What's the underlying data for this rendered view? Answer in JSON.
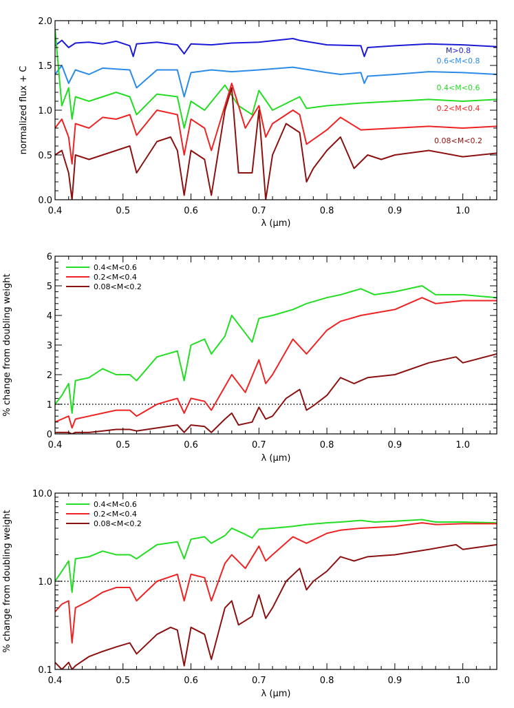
{
  "chart_data": [
    {
      "type": "line",
      "title": "",
      "xlabel": "λ (μm)",
      "ylabel": "normalized flux + C",
      "xlim": [
        0.4,
        1.05
      ],
      "ylim": [
        0.0,
        2.0
      ],
      "xticks": [
        0.4,
        0.5,
        0.6,
        0.7,
        0.8,
        0.9,
        1.0
      ],
      "xtick_labels": [
        "0.4",
        "0.5",
        "0.6",
        "0.7",
        "0.8",
        "0.9",
        "1.0"
      ],
      "yticks": [
        0.0,
        0.5,
        1.0,
        1.5,
        2.0
      ],
      "ytick_labels": [
        "0.0",
        "0.5",
        "1.0",
        "1.5",
        "2.0"
      ],
      "yscale": "linear",
      "legend": "inline-right",
      "series": [
        {
          "name": "M>0.8",
          "color": "#1a1ad6",
          "x": [
            0.4,
            0.41,
            0.42,
            0.43,
            0.45,
            0.47,
            0.49,
            0.51,
            0.515,
            0.52,
            0.55,
            0.58,
            0.59,
            0.6,
            0.63,
            0.66,
            0.7,
            0.75,
            0.76,
            0.8,
            0.85,
            0.855,
            0.86,
            0.9,
            0.95,
            1.0,
            1.05
          ],
          "y": [
            1.72,
            1.78,
            1.7,
            1.75,
            1.76,
            1.74,
            1.77,
            1.72,
            1.6,
            1.74,
            1.76,
            1.73,
            1.63,
            1.74,
            1.73,
            1.75,
            1.76,
            1.8,
            1.78,
            1.73,
            1.72,
            1.6,
            1.7,
            1.72,
            1.74,
            1.73,
            1.71
          ]
        },
        {
          "name": "0.6<M<0.8",
          "color": "#2a8ae8",
          "x": [
            0.4,
            0.41,
            0.42,
            0.43,
            0.45,
            0.47,
            0.49,
            0.51,
            0.52,
            0.55,
            0.58,
            0.59,
            0.6,
            0.63,
            0.66,
            0.7,
            0.75,
            0.8,
            0.82,
            0.85,
            0.855,
            0.86,
            0.9,
            0.95,
            1.0,
            1.05
          ],
          "y": [
            1.4,
            1.5,
            1.3,
            1.45,
            1.4,
            1.47,
            1.46,
            1.45,
            1.25,
            1.45,
            1.45,
            1.15,
            1.42,
            1.45,
            1.43,
            1.45,
            1.48,
            1.42,
            1.4,
            1.42,
            1.3,
            1.38,
            1.4,
            1.43,
            1.42,
            1.4
          ]
        },
        {
          "name": "0.4<M<0.6",
          "color": "#22dd22",
          "x": [
            0.4,
            0.41,
            0.42,
            0.425,
            0.43,
            0.45,
            0.47,
            0.49,
            0.51,
            0.52,
            0.55,
            0.58,
            0.59,
            0.6,
            0.62,
            0.65,
            0.67,
            0.69,
            0.7,
            0.72,
            0.76,
            0.77,
            0.8,
            0.85,
            0.9,
            0.95,
            1.0,
            1.05
          ],
          "y": [
            1.9,
            1.05,
            1.25,
            0.9,
            1.15,
            1.1,
            1.15,
            1.2,
            1.15,
            0.95,
            1.18,
            1.15,
            0.8,
            1.1,
            1.0,
            1.28,
            1.05,
            0.95,
            1.22,
            1.0,
            1.15,
            1.02,
            1.05,
            1.08,
            1.1,
            1.12,
            1.1,
            1.12
          ]
        },
        {
          "name": "0.2<M<0.4",
          "color": "#ee2222",
          "x": [
            0.4,
            0.41,
            0.42,
            0.425,
            0.43,
            0.45,
            0.47,
            0.49,
            0.51,
            0.52,
            0.55,
            0.58,
            0.59,
            0.6,
            0.62,
            0.63,
            0.65,
            0.66,
            0.68,
            0.7,
            0.71,
            0.72,
            0.75,
            0.76,
            0.77,
            0.8,
            0.82,
            0.85,
            0.9,
            0.95,
            1.0,
            1.05
          ],
          "y": [
            0.8,
            0.9,
            0.7,
            0.4,
            0.85,
            0.8,
            0.92,
            0.9,
            0.95,
            0.72,
            1.0,
            0.95,
            0.5,
            0.9,
            0.8,
            0.55,
            1.05,
            1.3,
            0.8,
            1.05,
            0.7,
            0.85,
            1.0,
            0.95,
            0.62,
            0.78,
            0.92,
            0.78,
            0.8,
            0.82,
            0.8,
            0.82
          ]
        },
        {
          "name": "0.08<M<0.2",
          "color": "#8b1010",
          "x": [
            0.4,
            0.41,
            0.42,
            0.425,
            0.43,
            0.45,
            0.47,
            0.49,
            0.51,
            0.52,
            0.55,
            0.57,
            0.58,
            0.59,
            0.6,
            0.62,
            0.63,
            0.65,
            0.66,
            0.67,
            0.69,
            0.7,
            0.71,
            0.72,
            0.74,
            0.76,
            0.77,
            0.78,
            0.8,
            0.82,
            0.84,
            0.86,
            0.88,
            0.9,
            0.95,
            1.0,
            1.05
          ],
          "y": [
            0.5,
            0.55,
            0.3,
            0.0,
            0.5,
            0.45,
            0.5,
            0.55,
            0.6,
            0.3,
            0.65,
            0.7,
            0.55,
            0.05,
            0.55,
            0.45,
            0.05,
            1.0,
            1.25,
            0.3,
            0.3,
            1.0,
            0.0,
            0.5,
            0.85,
            0.75,
            0.2,
            0.35,
            0.55,
            0.7,
            0.35,
            0.5,
            0.45,
            0.5,
            0.55,
            0.48,
            0.52
          ]
        }
      ]
    },
    {
      "type": "line",
      "title": "",
      "xlabel": "λ (μm)",
      "ylabel": "% change from doubling weight",
      "xlim": [
        0.4,
        1.05
      ],
      "ylim": [
        0,
        6
      ],
      "xticks": [
        0.4,
        0.5,
        0.6,
        0.7,
        0.8,
        0.9,
        1.0
      ],
      "xtick_labels": [
        "0.4",
        "0.5",
        "0.6",
        "0.7",
        "0.8",
        "0.9",
        "1.0"
      ],
      "yticks": [
        0,
        1,
        2,
        3,
        4,
        5,
        6
      ],
      "ytick_labels": [
        "0",
        "1",
        "2",
        "3",
        "4",
        "5",
        "6"
      ],
      "yscale": "linear",
      "reference_line": 1,
      "legend": "top-left",
      "series": [
        {
          "name": "0.4<M<0.6",
          "color": "#22dd22",
          "x": [
            0.4,
            0.41,
            0.42,
            0.425,
            0.43,
            0.45,
            0.47,
            0.49,
            0.51,
            0.52,
            0.55,
            0.58,
            0.59,
            0.6,
            0.62,
            0.63,
            0.65,
            0.66,
            0.68,
            0.69,
            0.7,
            0.72,
            0.75,
            0.77,
            0.8,
            0.82,
            0.85,
            0.87,
            0.9,
            0.94,
            0.96,
            1.0,
            1.05
          ],
          "y": [
            1.0,
            1.3,
            1.7,
            0.7,
            1.8,
            1.9,
            2.2,
            2.0,
            2.0,
            1.8,
            2.6,
            2.8,
            1.8,
            3.0,
            3.2,
            2.7,
            3.3,
            4.0,
            3.4,
            3.1,
            3.9,
            4.0,
            4.2,
            4.4,
            4.6,
            4.7,
            4.9,
            4.7,
            4.8,
            5.0,
            4.7,
            4.7,
            4.6
          ]
        },
        {
          "name": "0.2<M<0.4",
          "color": "#ee2222",
          "x": [
            0.4,
            0.41,
            0.42,
            0.425,
            0.43,
            0.45,
            0.47,
            0.49,
            0.51,
            0.52,
            0.55,
            0.58,
            0.59,
            0.6,
            0.62,
            0.63,
            0.65,
            0.66,
            0.68,
            0.7,
            0.71,
            0.72,
            0.75,
            0.77,
            0.8,
            0.82,
            0.85,
            0.9,
            0.94,
            0.96,
            1.0,
            1.05
          ],
          "y": [
            0.4,
            0.5,
            0.6,
            0.2,
            0.5,
            0.6,
            0.7,
            0.8,
            0.8,
            0.6,
            1.0,
            1.2,
            0.7,
            1.2,
            1.1,
            0.8,
            1.6,
            2.0,
            1.4,
            2.5,
            1.7,
            2.0,
            3.2,
            2.7,
            3.5,
            3.8,
            4.0,
            4.2,
            4.6,
            4.4,
            4.5,
            4.5
          ]
        },
        {
          "name": "0.08<M<0.2",
          "color": "#8b1010",
          "x": [
            0.4,
            0.42,
            0.425,
            0.43,
            0.45,
            0.47,
            0.49,
            0.51,
            0.52,
            0.55,
            0.58,
            0.59,
            0.6,
            0.62,
            0.63,
            0.65,
            0.66,
            0.67,
            0.69,
            0.7,
            0.71,
            0.72,
            0.74,
            0.76,
            0.77,
            0.78,
            0.8,
            0.82,
            0.84,
            0.86,
            0.88,
            0.9,
            0.95,
            0.99,
            1.0,
            1.05
          ],
          "y": [
            0.05,
            0.05,
            0.0,
            0.05,
            0.05,
            0.1,
            0.15,
            0.15,
            0.1,
            0.2,
            0.3,
            0.05,
            0.3,
            0.25,
            0.05,
            0.5,
            0.7,
            0.3,
            0.4,
            0.9,
            0.5,
            0.6,
            1.2,
            1.5,
            0.8,
            0.95,
            1.3,
            1.9,
            1.7,
            1.9,
            1.95,
            2.0,
            2.4,
            2.6,
            2.4,
            2.7
          ]
        }
      ]
    },
    {
      "type": "line",
      "title": "",
      "xlabel": "λ (μm)",
      "ylabel": "% change from doubling weight",
      "xlim": [
        0.4,
        1.05
      ],
      "ylim": [
        0.1,
        10.0
      ],
      "xticks": [
        0.4,
        0.5,
        0.6,
        0.7,
        0.8,
        0.9,
        1.0
      ],
      "xtick_labels": [
        "0.4",
        "0.5",
        "0.6",
        "0.7",
        "0.8",
        "0.9",
        "1.0"
      ],
      "yticks": [
        0.1,
        1.0,
        10.0
      ],
      "ytick_labels": [
        "0.1",
        "1.0",
        "10.0"
      ],
      "yscale": "log",
      "reference_line": 1.0,
      "legend": "top-left",
      "series": [
        {
          "name": "0.4<M<0.6",
          "color": "#22dd22",
          "x": [
            0.4,
            0.41,
            0.42,
            0.425,
            0.43,
            0.45,
            0.47,
            0.49,
            0.51,
            0.52,
            0.55,
            0.58,
            0.59,
            0.6,
            0.62,
            0.63,
            0.65,
            0.66,
            0.68,
            0.69,
            0.7,
            0.72,
            0.75,
            0.77,
            0.8,
            0.82,
            0.85,
            0.87,
            0.9,
            0.94,
            0.96,
            1.0,
            1.05
          ],
          "y": [
            1.0,
            1.3,
            1.7,
            0.75,
            1.8,
            1.9,
            2.2,
            2.0,
            2.0,
            1.8,
            2.6,
            2.8,
            1.8,
            3.0,
            3.2,
            2.7,
            3.3,
            4.0,
            3.4,
            3.1,
            3.9,
            4.0,
            4.2,
            4.4,
            4.6,
            4.7,
            4.9,
            4.7,
            4.8,
            5.0,
            4.7,
            4.7,
            4.6
          ]
        },
        {
          "name": "0.2<M<0.4",
          "color": "#ee2222",
          "x": [
            0.4,
            0.41,
            0.42,
            0.425,
            0.43,
            0.45,
            0.47,
            0.49,
            0.51,
            0.52,
            0.55,
            0.58,
            0.59,
            0.6,
            0.62,
            0.63,
            0.65,
            0.66,
            0.68,
            0.7,
            0.71,
            0.72,
            0.75,
            0.77,
            0.8,
            0.82,
            0.85,
            0.9,
            0.94,
            0.96,
            1.0,
            1.05
          ],
          "y": [
            0.45,
            0.55,
            0.6,
            0.2,
            0.5,
            0.6,
            0.75,
            0.85,
            0.85,
            0.6,
            1.0,
            1.2,
            0.6,
            1.2,
            1.1,
            0.6,
            1.6,
            2.0,
            1.4,
            2.5,
            1.7,
            2.0,
            3.2,
            2.7,
            3.5,
            3.8,
            4.0,
            4.2,
            4.6,
            4.4,
            4.5,
            4.5
          ]
        },
        {
          "name": "0.08<M<0.2",
          "color": "#8b1010",
          "x": [
            0.4,
            0.41,
            0.42,
            0.425,
            0.43,
            0.45,
            0.47,
            0.49,
            0.51,
            0.52,
            0.55,
            0.57,
            0.58,
            0.59,
            0.6,
            0.62,
            0.63,
            0.65,
            0.66,
            0.67,
            0.69,
            0.7,
            0.71,
            0.72,
            0.74,
            0.76,
            0.77,
            0.78,
            0.8,
            0.82,
            0.84,
            0.86,
            0.88,
            0.9,
            0.95,
            0.99,
            1.0,
            1.05
          ],
          "y": [
            0.12,
            0.1,
            0.12,
            0.1,
            0.11,
            0.14,
            0.16,
            0.18,
            0.2,
            0.15,
            0.25,
            0.3,
            0.28,
            0.11,
            0.3,
            0.25,
            0.13,
            0.5,
            0.6,
            0.32,
            0.4,
            0.7,
            0.38,
            0.5,
            1.0,
            1.4,
            0.8,
            1.0,
            1.3,
            1.9,
            1.7,
            1.9,
            1.95,
            2.0,
            2.3,
            2.6,
            2.3,
            2.6
          ]
        }
      ]
    }
  ]
}
